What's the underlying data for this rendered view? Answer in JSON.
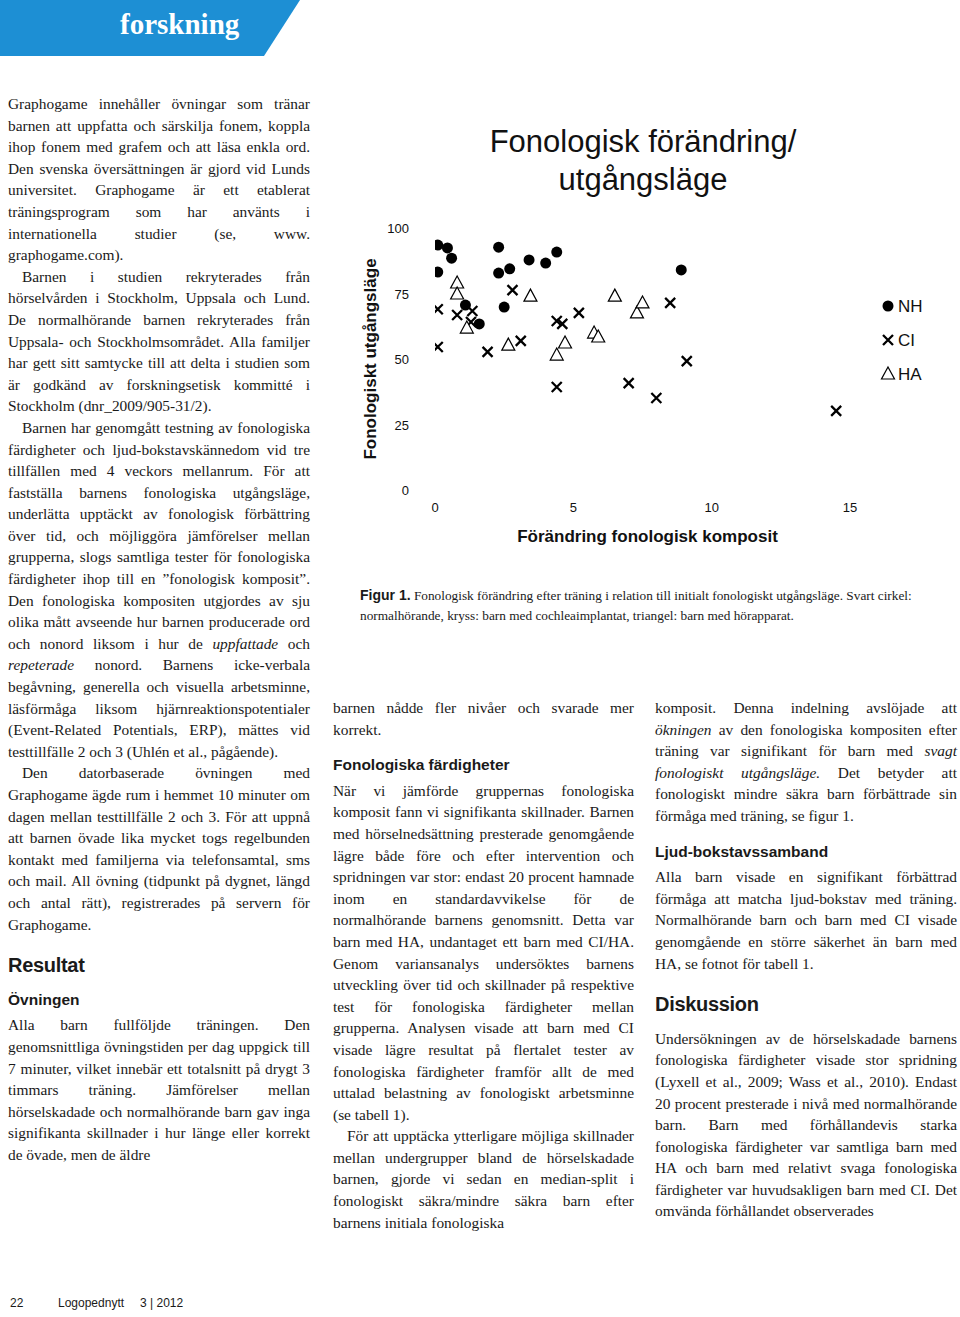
{
  "header": {
    "section": "forskning"
  },
  "text": {
    "columns": [
      [
        {
          "kind": "p",
          "indent": false,
          "runs": [
            "Graphogame innehåller övningar som tränar barnen att uppfatta och särskilja fonem, koppla ihop fonem med grafem och att läsa enkla ord. Den svenska översättningen är gjord vid Lunds universitet. Graphogame är ett etablerat träningsprogram som har använts i internationella studier (se, www. graphogame.com)."
          ]
        },
        {
          "kind": "p",
          "indent": true,
          "runs": [
            "Barnen i studien rekryterades från hörselvården i Stockholm, Uppsala och Lund. De normalhörande barnen rekryterades från Uppsala- och Stockholmsområdet. Alla familjer har gett sitt samtycke till att delta i studien som är godkänd av forskningsetisk kommitté i Stockholm (dnr_2009/905-31/2)."
          ]
        },
        {
          "kind": "p",
          "indent": true,
          "runs": [
            "Barnen har genomgått testning av fonologiska färdigheter och ljud-bokstavskännedom vid tre tillfällen med 4 veckors mellanrum. För att fastställa barnens fonologiska utgångsläge, underlätta upptäckt av fonologisk förbättring över tid, och möjliggöra jämförelser mellan grupperna, slogs samtliga tester för fonologiska färdigheter ihop till en ”fonologisk komposit”. Den fonologiska kompositen utgjordes av sju olika mått avseende hur barnen producerade ord och nonord liksom i hur de ",
            {
              "em": "uppfattade"
            },
            " och ",
            {
              "em": "repeterade"
            },
            " nonord. Barnens icke-verbala begåvning, generella och visuella arbetsminne, läsförmåga liksom hjärnreaktionspotentialer (Event-Related Potentials, ERP), mättes vid testtillfälle 2 och 3 (Uhlén et al., pågående)."
          ]
        },
        {
          "kind": "p",
          "indent": true,
          "runs": [
            "Den datorbaserade övningen med Graphogame ägde rum i hemmet 10 minuter om dagen mellan testtillfälle 2 och 3. För att uppnå att barnen övade lika mycket togs regelbunden kontakt med familjerna via telefonsamtal, sms och mail. All övning (tidpunkt på dygnet, längd och antal rätt), registrerades på servern för Graphogame."
          ]
        },
        {
          "kind": "h1",
          "text": "Resultat"
        },
        {
          "kind": "h2",
          "text": "Övningen"
        },
        {
          "kind": "p",
          "indent": false,
          "runs": [
            "Alla barn fullföljde träningen. Den genomsnittliga övningstiden per dag uppgick till 7 minuter, vilket innebär ett totalsnitt på drygt 3 timmars träning. Jämförelser mellan hörselskadade och normalhörande barn gav inga signifikanta skillnader i hur länge eller korrekt de övade, men de äldre"
          ]
        }
      ],
      [
        {
          "kind": "p",
          "indent": false,
          "runs": [
            "barnen nådde fler nivåer och svarade mer korrekt."
          ]
        },
        {
          "kind": "h2",
          "text": "Fonologiska färdigheter"
        },
        {
          "kind": "p",
          "indent": false,
          "runs": [
            "När vi jämförde gruppernas fonologiska komposit fann vi signifikanta skillnader. Barnen med hörselnedsättning presterade genomgående lägre både före och efter intervention och spridningen var stor: endast 20 procent hamnade inom en standardavvikelse för de normalhörande barnens genomsnitt. Detta var barn med HA, undantaget ett barn med CI/HA. Genom variansanalys undersöktes barnens utveckling över tid och skillnader på respektive test för fonologiska färdigheter mellan grupperna. Analysen visade att barn med CI visade lägre resultat på flertalet tester av fonologiska färdigheter framför allt de med uttalad belastning av fonologiskt arbetsminne (se tabell 1)."
          ]
        },
        {
          "kind": "p",
          "indent": true,
          "runs": [
            "För att upptäcka ytterligare möjliga skillnader mellan undergrupper bland de hörselskadade barnen, gjorde vi sedan en median-split i fonologiskt säkra/mindre säkra barn efter barnens initiala fonologiska"
          ]
        }
      ],
      [
        {
          "kind": "p",
          "indent": false,
          "runs": [
            "komposit. Denna indelning avslöjade att ",
            {
              "em": "ökningen"
            },
            " av den fonologiska kompositen efter träning var signifikant för barn med ",
            {
              "em": "svagt fonologiskt utgångsläge."
            },
            " Det betyder att fonologiskt mindre säkra barn förbättrade sin förmåga med träning, se figur 1."
          ]
        },
        {
          "kind": "h2",
          "text": "Ljud-bokstavssamband"
        },
        {
          "kind": "p",
          "indent": false,
          "runs": [
            "Alla barn visade en signifikant förbättrad förmåga att matcha ljud-bokstav med träning. Normalhörande barn och barn med CI visade genomgående en större säkerhet än barn med HA, se fotnot för tabell 1."
          ]
        },
        {
          "kind": "h1",
          "text": "Diskussion"
        },
        {
          "kind": "p",
          "indent": false,
          "runs": [
            "Undersökningen av de hörselskadade barnens fonologiska färdigheter visade stor spridning (Lyxell et al., 2009; Wass et al., 2010). Endast 20 procent presterade i nivå med normalhörande barn. Barn med förhållandevis starka fonologiska färdigheter var samtliga barn med HA och barn med relativt svaga fonologiska färdigheter var huvudsakligen barn med CI. Det omvända förhållandet observerades"
          ]
        }
      ]
    ]
  },
  "chart_data": {
    "type": "scatter",
    "title": "Fonologisk förändring/ utgångsläge",
    "x_label": "Förändring fonologisk komposit",
    "y_label": "Fonologiskt utgångsläge",
    "xlim": [
      0,
      15
    ],
    "ylim": [
      0,
      100
    ],
    "xticks": [
      0,
      5,
      10,
      15
    ],
    "yticks": [
      0,
      25,
      50,
      75,
      100
    ],
    "grid": false,
    "legend": "right",
    "series": [
      {
        "name": "NH",
        "color": "#000000",
        "marker": "circle",
        "x": [
          0.1,
          0.45,
          0.1,
          0.6,
          1.1,
          1.6,
          2.3,
          2.3,
          2.7,
          2.5,
          3.4,
          4.0,
          4.4,
          8.9
        ],
        "values": [
          93.5,
          92.4,
          83.2,
          88.5,
          70.6,
          63.4,
          92.7,
          82.8,
          84.4,
          69.8,
          87.8,
          86.6,
          90.8,
          84.0
        ]
      },
      {
        "name": "CI",
        "color": "#000000",
        "marker": "x",
        "x": [
          0.1,
          0.1,
          0.8,
          1.35,
          1.3,
          1.9,
          2.8,
          3.1,
          4.4,
          4.6,
          4.4,
          5.2,
          7.0,
          8.0,
          8.5,
          9.1,
          14.5
        ],
        "values": [
          69.0,
          54.6,
          66.8,
          68.3,
          64.1,
          52.7,
          76.3,
          56.9,
          64.5,
          63.4,
          39.3,
          67.6,
          40.8,
          35.1,
          71.4,
          49.2,
          30.2
        ]
      },
      {
        "name": "HA",
        "color": "#000000",
        "marker": "triangle",
        "x": [
          0.8,
          0.8,
          1.15,
          2.65,
          3.45,
          4.4,
          4.7,
          5.75,
          5.9,
          6.5,
          7.3,
          7.5
        ],
        "values": [
          79.0,
          74.8,
          61.8,
          55.3,
          74.0,
          51.5,
          56.1,
          59.9,
          58.4,
          74.0,
          67.6,
          71.4
        ]
      }
    ]
  },
  "caption": {
    "label": "Figur 1.",
    "text": "Fonologisk förändring efter träning i relation till initialt fonologiskt utgångsläge. Svart cirkel: normalhörande, kryss: barn med cochleaimplantat, triangel: barn med hörapparat."
  },
  "footer": {
    "page": "22",
    "magazine": "Logopednytt",
    "issue": "3 | 2012"
  }
}
